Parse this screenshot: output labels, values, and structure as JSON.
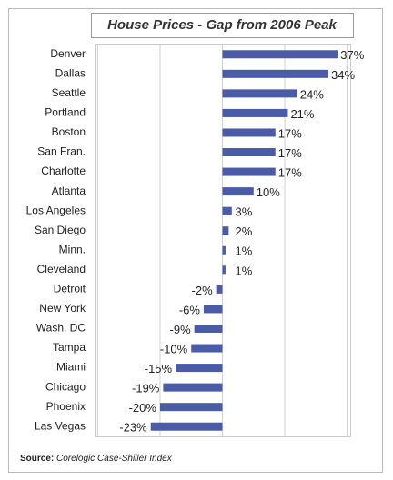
{
  "chart_data": {
    "type": "barh",
    "title": "House Prices - Gap from 2006 Peak",
    "categories": [
      "Denver",
      "Dallas",
      "Seattle",
      "Portland",
      "Boston",
      "San Fran.",
      "Charlotte",
      "Atlanta",
      "Los Angeles",
      "San Diego",
      "Minn.",
      "Cleveland",
      "Detroit",
      "New York",
      "Wash. DC",
      "Tampa",
      "Miami",
      "Chicago",
      "Phoenix",
      "Las Vegas"
    ],
    "values": [
      37,
      34,
      24,
      21,
      17,
      17,
      17,
      10,
      3,
      2,
      1,
      1,
      -2,
      -6,
      -9,
      -10,
      -15,
      -19,
      -20,
      -23
    ],
    "value_labels": [
      "37%",
      "34%",
      "24%",
      "21%",
      "17%",
      "17%",
      "17%",
      "10%",
      "3%",
      "2%",
      "1%",
      "1%",
      "-2%",
      "-6%",
      "-9%",
      "-10%",
      "-15%",
      "-19%",
      "-20%",
      "-23%"
    ],
    "color": "#4a5ba8",
    "negative_label_color": "#e0281e",
    "xlim": [
      -41,
      41
    ],
    "xticks": [
      -40,
      -20,
      0,
      20,
      40
    ],
    "grid": true,
    "source_label": "Source:",
    "source": "Corelogic Case-Shiller Index"
  }
}
